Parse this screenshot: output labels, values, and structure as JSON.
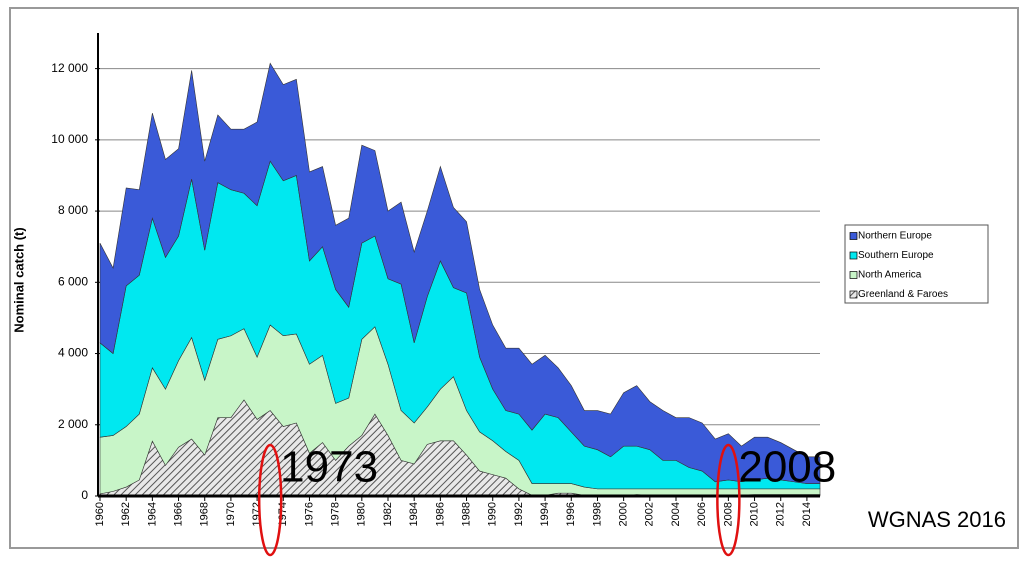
{
  "chart_data": {
    "type": "stacked-area",
    "y_label": "Nominal catch (t)",
    "x": [
      1960,
      1961,
      1962,
      1963,
      1964,
      1965,
      1966,
      1967,
      1968,
      1969,
      1970,
      1971,
      1972,
      1973,
      1974,
      1975,
      1976,
      1977,
      1978,
      1979,
      1980,
      1981,
      1982,
      1983,
      1984,
      1985,
      1986,
      1987,
      1988,
      1989,
      1990,
      1991,
      1992,
      1993,
      1994,
      1995,
      1996,
      1997,
      1998,
      1999,
      2000,
      2001,
      2002,
      2003,
      2004,
      2005,
      2006,
      2007,
      2008,
      2009,
      2010,
      2011,
      2012,
      2013,
      2014,
      2015
    ],
    "xlim": [
      1960,
      2015
    ],
    "xticks": [
      1960,
      1962,
      1964,
      1966,
      1968,
      1970,
      1972,
      1974,
      1976,
      1978,
      1980,
      1982,
      1984,
      1986,
      1988,
      1990,
      1992,
      1994,
      1996,
      1998,
      2000,
      2002,
      2004,
      2006,
      2008,
      2010,
      2012,
      2014
    ],
    "ylim": [
      0,
      13000
    ],
    "yticks": [
      0,
      {
        "value": 2000,
        "label": "2 000"
      },
      {
        "value": 4000,
        "label": "4 000"
      },
      {
        "value": 6000,
        "label": "6 000"
      },
      {
        "value": 8000,
        "label": "8 000"
      },
      {
        "value": 10000,
        "label": "10 000"
      },
      {
        "value": 12000,
        "label": "12 000"
      }
    ],
    "grid": true,
    "legend": "right",
    "series": [
      {
        "name": "Greenland & Faroes",
        "color": "#808080",
        "hatch": true,
        "values": [
          60,
          130,
          250,
          450,
          1540,
          860,
          1370,
          1600,
          1150,
          2200,
          2200,
          2700,
          2150,
          2400,
          1950,
          2050,
          1200,
          1500,
          1000,
          1400,
          1700,
          2300,
          1700,
          1000,
          900,
          1450,
          1550,
          1550,
          1150,
          700,
          600,
          500,
          200,
          20,
          20,
          80,
          80,
          20,
          10,
          20,
          20,
          40,
          20,
          20,
          20,
          20,
          20,
          20,
          25,
          25,
          40,
          40,
          40,
          40,
          40,
          40
        ]
      },
      {
        "name": "North America",
        "color": "#c8f5c8",
        "values": [
          1590,
          1570,
          1700,
          1850,
          2060,
          2140,
          2430,
          2850,
          2100,
          2200,
          2300,
          2000,
          1750,
          2400,
          2550,
          2500,
          2500,
          2450,
          1600,
          1350,
          2700,
          2450,
          2000,
          1400,
          1150,
          1050,
          1450,
          1800,
          1250,
          1100,
          950,
          750,
          800,
          330,
          330,
          270,
          270,
          230,
          190,
          180,
          180,
          160,
          180,
          180,
          180,
          180,
          180,
          180,
          175,
          175,
          160,
          160,
          160,
          160,
          160,
          160
        ]
      },
      {
        "name": "Southern Europe",
        "color": "#00e8f0",
        "values": [
          2650,
          2300,
          3950,
          3900,
          4200,
          3700,
          3500,
          4450,
          3650,
          4400,
          4100,
          3800,
          4250,
          4600,
          4350,
          4450,
          2900,
          3050,
          3200,
          2550,
          2700,
          2550,
          2400,
          3550,
          2250,
          3100,
          3600,
          2500,
          3300,
          2100,
          1450,
          1150,
          1300,
          1500,
          1950,
          1850,
          1450,
          1150,
          1100,
          900,
          1200,
          1200,
          1100,
          800,
          800,
          600,
          500,
          200,
          250,
          200,
          250,
          300,
          250,
          200,
          150,
          150
        ]
      },
      {
        "name": "Northern Europe",
        "color": "#3a5ad8",
        "values": [
          2800,
          2400,
          2750,
          2400,
          2950,
          2750,
          2450,
          3050,
          2500,
          1900,
          1700,
          1800,
          2350,
          2750,
          2700,
          2700,
          2500,
          2250,
          1800,
          2500,
          2750,
          2400,
          1900,
          2300,
          2550,
          2400,
          2650,
          2250,
          2000,
          1900,
          1800,
          1750,
          1850,
          1850,
          1650,
          1400,
          1300,
          1000,
          1100,
          1200,
          1500,
          1700,
          1350,
          1400,
          1200,
          1400,
          1350,
          1200,
          1300,
          1000,
          1200,
          1150,
          1050,
          900,
          750,
          750
        ]
      }
    ],
    "annotations": [
      {
        "label": "1973",
        "x": 1973
      },
      {
        "label": "2008",
        "x": 2008
      }
    ],
    "source": "WGNAS 2016"
  }
}
